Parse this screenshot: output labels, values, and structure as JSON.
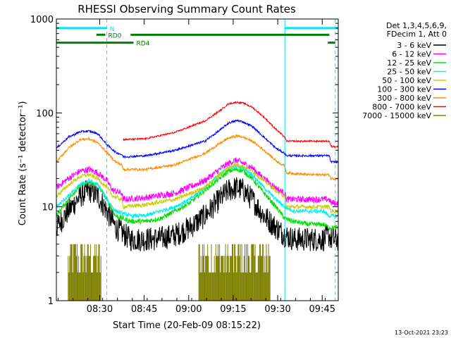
{
  "chart_data": {
    "type": "line",
    "title": "RHESSI Observing Summary Count Rates",
    "xlabel": "Start Time (20-Feb-09 08:15:22)",
    "ylabel": "Count Rate (s⁻¹ detector⁻¹)",
    "yscale": "log",
    "ylim": [
      1,
      1000
    ],
    "xlim_min": [
      0,
      95
    ],
    "x_unit": "minutes after 08:15:22",
    "x_ticks": [
      {
        "label": "08:30",
        "min": 14.6
      },
      {
        "label": "08:45",
        "min": 29.6
      },
      {
        "label": "09:00",
        "min": 44.6
      },
      {
        "label": "09:15",
        "min": 59.6
      },
      {
        "label": "09:30",
        "min": 74.6
      },
      {
        "label": "09:45",
        "min": 89.6
      }
    ],
    "y_ticks": [
      {
        "label": "1",
        "v": 1
      },
      {
        "label": "10",
        "v": 10
      },
      {
        "label": "100",
        "v": 100
      },
      {
        "label": "1000",
        "v": 1000
      }
    ],
    "legend_header": [
      "Det 1,3,4,5,6,9,",
      "FDecim 1, Att 0"
    ],
    "legend_placement": "right",
    "footer": "13-Oct-2021 23:23",
    "flags": [
      {
        "label": "N",
        "color": "#00e5ee",
        "v": 800,
        "segments": [
          [
            0,
            17
          ],
          [
            77,
            95
          ]
        ]
      },
      {
        "label": "RD0",
        "color": "#008000",
        "v": 680,
        "segments": [
          [
            13.5,
            16.5
          ],
          [
            25,
            92
          ]
        ]
      },
      {
        "label": "RD4",
        "color": "#008000",
        "v": 560,
        "segments": [
          [
            0,
            26
          ],
          [
            91.5,
            94
          ]
        ]
      }
    ],
    "vlines": [
      {
        "min": 0,
        "color": "#00e5ee",
        "style": "solid"
      },
      {
        "min": 17,
        "color": "#00e5ee",
        "style": "dashed"
      },
      {
        "min": 77,
        "color": "#00e5ee",
        "style": "solid"
      },
      {
        "min": 94,
        "color": "#00e5ee",
        "style": "dashed"
      }
    ],
    "series": [
      {
        "name": "3 - 6 keV",
        "color": "#000000",
        "noise": 0.3,
        "x": [
          0,
          4,
          8,
          11,
          14,
          17,
          20,
          25,
          30,
          35,
          40,
          45,
          50,
          55,
          58,
          61,
          63,
          66,
          70,
          74,
          77,
          80,
          85,
          90,
          92,
          92.5,
          95
        ],
        "y": [
          6,
          9,
          13,
          15,
          13,
          9,
          6,
          4.5,
          4.5,
          4.6,
          5,
          6,
          8,
          12,
          15,
          16,
          15,
          12,
          8,
          6,
          5,
          4.5,
          4.5,
          4.5,
          5,
          4.5,
          4.5
        ]
      },
      {
        "name": "6 - 12 keV",
        "color": "#ff00ff",
        "noise": 0.08,
        "x": [
          0,
          4,
          8,
          11,
          14,
          17,
          19,
          22,
          22.5,
          30,
          40,
          50,
          55,
          58,
          60,
          61,
          63,
          66,
          70,
          75,
          77,
          77.5,
          85,
          92,
          92.5,
          95
        ],
        "y": [
          16,
          20,
          24,
          25,
          23,
          19,
          15,
          14,
          12,
          12.5,
          14,
          19,
          25,
          29,
          31,
          31,
          29,
          26,
          20,
          15,
          14,
          12,
          12,
          12,
          11,
          11
        ]
      },
      {
        "name": "12 - 25 keV",
        "color": "#00dd00",
        "noise": 0.06,
        "x": [
          0,
          4,
          8,
          11,
          14,
          17,
          20,
          25,
          30,
          35,
          40,
          45,
          50,
          55,
          58,
          61,
          63,
          66,
          70,
          74,
          77,
          80,
          85,
          90,
          92,
          95
        ],
        "y": [
          8,
          12,
          17,
          18,
          17,
          12,
          8,
          7,
          7,
          7.5,
          9,
          11,
          15,
          20,
          24,
          25,
          24,
          20,
          14,
          10,
          7.5,
          7,
          6.5,
          6.5,
          6,
          6
        ]
      },
      {
        "name": "25 - 50 keV",
        "color": "#00eeee",
        "noise": 0.05,
        "x": [
          0,
          4,
          8,
          11,
          14,
          17,
          20,
          25,
          30,
          35,
          40,
          45,
          50,
          55,
          58,
          61,
          63,
          66,
          70,
          74,
          77,
          80,
          85,
          90,
          92,
          95
        ],
        "y": [
          10,
          13,
          17,
          19,
          17,
          12,
          9,
          8,
          8,
          9,
          10,
          12,
          16,
          22,
          26,
          27,
          26,
          22,
          16,
          12,
          10,
          9,
          9,
          9,
          8,
          8
        ]
      },
      {
        "name": "50 - 100 keV",
        "color": "#cccc00",
        "noise": 0.05,
        "x": [
          0,
          4,
          8,
          11,
          14,
          17,
          19,
          22,
          22.5,
          30,
          40,
          50,
          55,
          58,
          60,
          61,
          63,
          66,
          70,
          75,
          77,
          77.5,
          85,
          92,
          92.5,
          95
        ],
        "y": [
          13,
          17,
          21,
          22,
          20,
          16,
          13,
          12,
          10,
          10.5,
          12,
          16,
          22,
          26,
          28,
          28,
          27,
          24,
          19,
          14,
          13,
          10,
          10,
          10,
          9,
          9
        ]
      },
      {
        "name": "100 - 300 keV",
        "color": "#0000ff",
        "noise": 0.025,
        "x": [
          0,
          4,
          8,
          11,
          14,
          17,
          20,
          22,
          22.5,
          30,
          40,
          50,
          55,
          58,
          61,
          63,
          66,
          70,
          74,
          77,
          77.5,
          85,
          92,
          92.5,
          95
        ],
        "y": [
          42,
          55,
          63,
          64,
          60,
          46,
          38,
          36,
          34,
          35,
          40,
          50,
          65,
          78,
          83,
          80,
          72,
          55,
          42,
          37,
          35,
          35,
          35,
          30,
          30
        ]
      },
      {
        "name": "300 - 800 keV",
        "color": "#ff8c00",
        "noise": 0.03,
        "x": [
          0,
          4,
          8,
          11,
          14,
          17,
          20,
          22,
          22.5,
          30,
          40,
          50,
          55,
          58,
          61,
          63,
          66,
          70,
          74,
          77,
          77.5,
          85,
          92,
          92.5,
          95
        ],
        "y": [
          30,
          42,
          52,
          53,
          48,
          38,
          30,
          28,
          25,
          25,
          28,
          37,
          47,
          54,
          57,
          55,
          50,
          40,
          31,
          27,
          23,
          22,
          22,
          20,
          20
        ]
      },
      {
        "name": "800 - 7000 keV",
        "color": "#ff0000",
        "noise": 0.02,
        "x": [
          22.5,
          30,
          40,
          50,
          55,
          58,
          61,
          63,
          66,
          70,
          74,
          77,
          77.5,
          85,
          92,
          92.5,
          95
        ],
        "y": [
          52,
          53,
          62,
          82,
          105,
          125,
          130,
          127,
          115,
          90,
          67,
          55,
          50,
          50,
          50,
          44,
          44
        ]
      },
      {
        "name": "7000 - 15000 keV",
        "color": "#808000",
        "noise": 0,
        "x": [],
        "y": []
      }
    ],
    "step_series_note": "7000 - 15000 keV shown as discrete count bursts",
    "bursts": [
      {
        "start": 4,
        "end": 15,
        "levels": [
          2,
          3,
          4
        ],
        "peak": 4
      },
      {
        "start": 48,
        "end": 72,
        "levels": [
          2,
          3,
          4
        ],
        "peak": 4
      }
    ]
  }
}
